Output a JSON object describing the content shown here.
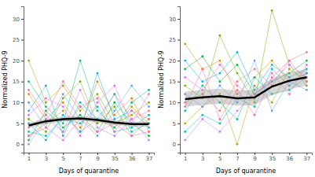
{
  "chart_data": [
    {
      "type": "line",
      "x_label": "Days of quarantine",
      "y_label": "Normalized PHQ-9",
      "categories": [
        "1",
        "3",
        "5",
        "7",
        "9",
        "35",
        "36",
        "37"
      ],
      "ylim": [
        -2,
        33
      ],
      "yticks": [
        0,
        5,
        10,
        15,
        20,
        25,
        30
      ],
      "grid": false,
      "series": [
        {
          "color": "#F8766D",
          "marker": "circle",
          "values": [
            4,
            7,
            3,
            9,
            5,
            12,
            6,
            8
          ]
        },
        {
          "color": "#E58700",
          "marker": "circle",
          "values": [
            12,
            6,
            10,
            4,
            15,
            7,
            11,
            3
          ]
        },
        {
          "color": "#C99800",
          "marker": "circle",
          "values": [
            2,
            5,
            8,
            3,
            6,
            4,
            9,
            5
          ]
        },
        {
          "color": "#A3A500",
          "marker": "circle",
          "values": [
            20,
            10,
            14,
            8,
            12,
            5,
            7,
            10
          ]
        },
        {
          "color": "#6BB100",
          "marker": "circle",
          "values": [
            6,
            3,
            11,
            15,
            5,
            9,
            2,
            6
          ]
        },
        {
          "color": "#00BA38",
          "marker": "circle",
          "values": [
            1,
            8,
            4,
            7,
            3,
            10,
            5,
            2
          ]
        },
        {
          "color": "#00BF7D",
          "marker": "circle",
          "values": [
            15,
            9,
            5,
            20,
            8,
            4,
            10,
            13
          ]
        },
        {
          "color": "#00C0AF",
          "marker": "circle",
          "values": [
            3,
            2,
            6,
            5,
            9,
            3,
            4,
            7
          ]
        },
        {
          "color": "#00BCD8",
          "marker": "circle",
          "values": [
            8,
            14,
            2,
            10,
            6,
            12,
            3,
            5
          ]
        },
        {
          "color": "#00B0F6",
          "marker": "circle",
          "values": [
            5,
            1,
            7,
            3,
            17,
            6,
            8,
            4
          ]
        },
        {
          "color": "#619CFF",
          "marker": "circle",
          "values": [
            10,
            4,
            12,
            6,
            2,
            8,
            14,
            9
          ]
        },
        {
          "color": "#B983FF",
          "marker": "circle",
          "values": [
            0,
            6,
            3,
            13,
            4,
            2,
            6,
            1
          ]
        },
        {
          "color": "#E76BF3",
          "marker": "circle",
          "values": [
            7,
            11,
            9,
            2,
            10,
            14,
            5,
            12
          ]
        },
        {
          "color": "#FD61D1",
          "marker": "circle",
          "values": [
            2,
            4,
            1,
            6,
            3,
            5,
            2,
            3
          ]
        },
        {
          "color": "#FF67A4",
          "marker": "circle",
          "values": [
            13,
            7,
            15,
            9,
            11,
            3,
            8,
            6
          ]
        },
        {
          "color": "#000000",
          "marker": "none",
          "values": [
            4.5,
            5.5,
            6,
            6.2,
            5.8,
            5.2,
            4.8,
            4.8
          ],
          "lower": [
            3.9,
            4.9,
            5.4,
            5.6,
            5.2,
            4.6,
            4.2,
            4.2
          ],
          "upper": [
            5.1,
            6.1,
            6.6,
            6.8,
            6.4,
            5.8,
            5.4,
            5.4
          ]
        }
      ]
    },
    {
      "type": "line",
      "x_label": "Days of quarantine",
      "y_label": "Normalized PHQ-9",
      "categories": [
        "1",
        "3",
        "5",
        "7",
        "9",
        "35",
        "36",
        "37"
      ],
      "ylim": [
        -2,
        33
      ],
      "yticks": [
        0,
        5,
        10,
        15,
        20,
        25,
        30
      ],
      "grid": false,
      "series": [
        {
          "color": "#F8766D",
          "marker": "circle",
          "values": [
            10,
            12,
            8,
            15,
            18,
            14,
            20,
            22
          ]
        },
        {
          "color": "#DE8C00",
          "marker": "circle",
          "values": [
            24,
            18,
            20,
            12,
            16,
            20,
            15,
            17
          ]
        },
        {
          "color": "#B79F00",
          "marker": "circle",
          "values": [
            5,
            9,
            12,
            0,
            14,
            10,
            18,
            15
          ]
        },
        {
          "color": "#7CAE00",
          "marker": "circle",
          "values": [
            14,
            11,
            26,
            17,
            10,
            32,
            19,
            14
          ]
        },
        {
          "color": "#00BA38",
          "marker": "circle",
          "values": [
            18,
            21,
            15,
            19,
            12,
            15,
            17,
            20
          ]
        },
        {
          "color": "#00C08B",
          "marker": "circle",
          "values": [
            8,
            14,
            10,
            6,
            16,
            12,
            13,
            16
          ]
        },
        {
          "color": "#00BFC4",
          "marker": "circle",
          "values": [
            3,
            7,
            5,
            11,
            9,
            18,
            14,
            17
          ]
        },
        {
          "color": "#00B4F0",
          "marker": "circle",
          "values": [
            20,
            15,
            17,
            22,
            13,
            19,
            16,
            18
          ]
        },
        {
          "color": "#619CFF",
          "marker": "circle",
          "values": [
            12,
            9,
            14,
            10,
            20,
            8,
            15,
            13
          ]
        },
        {
          "color": "#C77CFF",
          "marker": "circle",
          "values": [
            1,
            6,
            3,
            8,
            12,
            15,
            19,
            16
          ]
        },
        {
          "color": "#F564E3",
          "marker": "circle",
          "values": [
            16,
            13,
            19,
            14,
            11,
            17,
            12,
            19
          ]
        },
        {
          "color": "#FF64B0",
          "marker": "circle",
          "values": [
            9,
            18,
            6,
            13,
            7,
            16,
            20,
            15
          ]
        },
        {
          "color": "#000000",
          "marker": "none",
          "values": [
            10.8,
            11.2,
            11.5,
            11,
            11.2,
            13.8,
            15.2,
            16
          ],
          "lower": [
            9,
            9.4,
            9.7,
            9.2,
            9.4,
            11.8,
            13.2,
            14
          ],
          "upper": [
            12.6,
            13,
            13.3,
            12.8,
            13,
            15.8,
            17.2,
            18
          ]
        }
      ]
    }
  ]
}
